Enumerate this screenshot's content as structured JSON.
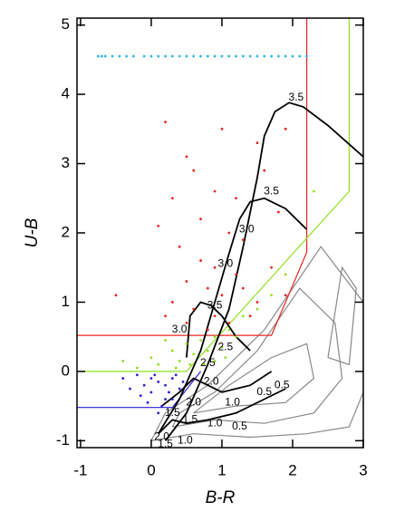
{
  "chart_data": {
    "type": "scatter",
    "x_label": "B-R",
    "y_label": "U-B",
    "xlim": [
      -1.05,
      3
    ],
    "ylim": [
      -1.1,
      5.1
    ],
    "xticks": [
      -1,
      0,
      1,
      2,
      3
    ],
    "yticks": [
      -1,
      0,
      1,
      2,
      3,
      4,
      5
    ],
    "series": [
      {
        "color": "#e8261f",
        "x": [
          0.2,
          0.3,
          0.5,
          0.6,
          0.9,
          1.1,
          1.3,
          1.5,
          1.6,
          1.8,
          1.0,
          0.4,
          0.7,
          0.9,
          1.2,
          0.5,
          0.8,
          1.0,
          1.3,
          1.5,
          0.3,
          0.6,
          0.9,
          1.1,
          1.4,
          0.2,
          0.5,
          0.8,
          -0.5,
          1.7,
          1.9,
          0.7,
          1.2,
          1.9,
          0.1
        ],
        "y": [
          3.6,
          2.5,
          3.1,
          2.9,
          2.6,
          2.0,
          1.9,
          3.3,
          2.9,
          2.3,
          3.5,
          1.8,
          1.6,
          1.5,
          1.4,
          1.3,
          1.2,
          1.1,
          1.2,
          1.0,
          1.0,
          0.9,
          0.8,
          0.7,
          0.8,
          0.8,
          0.7,
          0.6,
          1.1,
          1.5,
          1.1,
          2.2,
          2.5,
          3.5,
          2.1
        ]
      },
      {
        "color": "#8ee01f",
        "x": [
          0,
          0.1,
          0.3,
          0.4,
          0.5,
          0.6,
          0.7,
          0.8,
          0.9,
          1.0,
          1.1,
          1.2,
          1.3,
          1.5,
          1.7,
          -0.2,
          -0.4,
          0.2,
          0.55,
          0.9,
          2.3,
          1.9,
          0.35,
          0.75,
          1.05
        ],
        "y": [
          0.2,
          0.1,
          0.3,
          0.15,
          0.4,
          0.25,
          0.45,
          0.3,
          0.5,
          0.35,
          0.6,
          0.5,
          0.8,
          0.9,
          1.1,
          0.05,
          0.15,
          0.45,
          0.1,
          0.15,
          2.6,
          1.4,
          0.05,
          0.1,
          0.2
        ]
      },
      {
        "color": "#2a1fd6",
        "x": [
          -0.1,
          0,
          0.1,
          0.2,
          0.3,
          0.4,
          0.15,
          -0.05,
          0.05,
          0.25,
          -0.3,
          -0.4,
          0.35,
          0.1,
          0.2,
          -0.15,
          0.45,
          0,
          0.3,
          -0.2
        ],
        "y": [
          -0.2,
          -0.3,
          -0.15,
          -0.4,
          -0.1,
          -0.25,
          -0.5,
          -0.45,
          -0.05,
          -0.3,
          -0.25,
          -0.1,
          -0.05,
          -0.6,
          -0.2,
          -0.35,
          -0.15,
          -0.1,
          -0.4,
          -0.05
        ]
      },
      {
        "color": "#29b6e8",
        "x": [
          -0.75,
          -0.7,
          -0.65,
          -0.55,
          -0.45,
          -0.35,
          -0.25,
          -0.1,
          0,
          0.1,
          0.2,
          0.3,
          0.4,
          0.5,
          0.6,
          0.7,
          0.8,
          0.9,
          1.0,
          1.1,
          1.2,
          1.3,
          1.4,
          1.5,
          1.6,
          1.7,
          1.8,
          1.9,
          2.0,
          2.1,
          2.2
        ],
        "y": [
          4.55,
          4.55,
          4.55,
          4.55,
          4.55,
          4.55,
          4.55,
          4.55,
          4.55,
          4.55,
          4.55,
          4.55,
          4.55,
          4.55,
          4.55,
          4.55,
          4.55,
          4.55,
          4.55,
          4.55,
          4.55,
          4.55,
          4.55,
          4.55,
          4.55,
          4.55,
          4.55,
          4.55,
          4.55,
          4.55,
          4.55
        ]
      }
    ],
    "lines": [
      {
        "color": "#888888",
        "x": [
          0.0,
          0.6,
          1.4,
          2.2,
          2.8,
          3.0,
          3.0,
          2.4,
          1.6,
          0.8,
          0.2,
          0.0
        ],
        "y": [
          -1.0,
          -0.9,
          -0.95,
          -0.9,
          -0.8,
          -0.3,
          1.0,
          1.8,
          0.6,
          -0.2,
          -0.6,
          -1.0
        ]
      },
      {
        "color": "#888888",
        "x": [
          0.3,
          0.9,
          1.6,
          2.3,
          2.7,
          2.6,
          2.1,
          1.5,
          0.9,
          0.4,
          0.3
        ],
        "y": [
          -0.8,
          -0.7,
          -0.75,
          -0.6,
          -0.1,
          0.7,
          1.2,
          0.3,
          -0.3,
          -0.6,
          -0.8
        ]
      },
      {
        "color": "#888888",
        "x": [
          0.6,
          1.2,
          1.9,
          2.3,
          2.2,
          1.7,
          1.1,
          0.6
        ],
        "y": [
          -0.6,
          -0.5,
          -0.45,
          -0.1,
          0.4,
          0.2,
          -0.2,
          -0.6
        ]
      },
      {
        "color": "#888888",
        "x": [
          2.5,
          2.8,
          2.9,
          2.7,
          2.5
        ],
        "y": [
          0.2,
          0.1,
          1.2,
          1.5,
          0.2
        ]
      },
      {
        "color": "#e8261f",
        "x": [
          -1.05,
          1.7,
          2.2,
          2.2
        ],
        "y": [
          0.52,
          0.52,
          1.72,
          5.1
        ]
      },
      {
        "color": "#8ee01f",
        "x": [
          -1.05,
          0.5,
          2.8,
          2.8
        ],
        "y": [
          0,
          0,
          2.6,
          5.1
        ]
      },
      {
        "color": "#2a1fd6",
        "x": [
          -1.05,
          0.3,
          0.7
        ],
        "y": [
          -0.52,
          -0.52,
          0
        ]
      },
      {
        "color": "#000000",
        "x": [
          0.2,
          0.5,
          0.8,
          1.1,
          1.3,
          1.5,
          1.6,
          1.75,
          1.95,
          2.15,
          2.5,
          3.0
        ],
        "y": [
          -1.0,
          -0.6,
          0.1,
          0.9,
          1.8,
          2.8,
          3.4,
          3.75,
          3.88,
          3.82,
          3.55,
          3.1
        ]
      },
      {
        "color": "#000000",
        "x": [
          0.1,
          0.4,
          0.7,
          0.9,
          1.1,
          1.25,
          1.4,
          1.6,
          1.9,
          2.2
        ],
        "y": [
          -0.9,
          -0.4,
          0.3,
          1.0,
          1.7,
          2.2,
          2.45,
          2.5,
          2.35,
          2.05
        ]
      },
      {
        "color": "#000000",
        "x": [
          0.5,
          0.55,
          0.7,
          0.85,
          1.0,
          1.2,
          1.4
        ],
        "y": [
          0.2,
          0.8,
          1.0,
          0.95,
          0.8,
          0.5,
          0.3
        ]
      },
      {
        "color": "#000000",
        "x": [
          0.1,
          0.3,
          0.5,
          0.8,
          1.2,
          1.6,
          1.9
        ],
        "y": [
          -0.9,
          -0.7,
          -0.75,
          -0.7,
          -0.6,
          -0.4,
          -0.25
        ]
      },
      {
        "color": "#000000",
        "x": [
          0.15,
          0.4,
          0.6,
          1.0,
          1.4,
          1.7
        ],
        "y": [
          -0.5,
          -0.3,
          -0.1,
          -0.3,
          -0.2,
          0.0
        ]
      }
    ],
    "annotations": [
      {
        "text": "3.5",
        "x": 2.05,
        "y": 3.95
      },
      {
        "text": "3.5",
        "x": 1.7,
        "y": 2.6
      },
      {
        "text": "3.0",
        "x": 1.35,
        "y": 2.05
      },
      {
        "text": "3.0",
        "x": 1.05,
        "y": 1.55
      },
      {
        "text": "3.5",
        "x": 0.9,
        "y": 0.95
      },
      {
        "text": "3.0",
        "x": 0.4,
        "y": 0.6
      },
      {
        "text": "2.5",
        "x": 1.05,
        "y": 0.35
      },
      {
        "text": "2.5",
        "x": 0.8,
        "y": 0.12
      },
      {
        "text": "2.0",
        "x": 0.85,
        "y": -0.15
      },
      {
        "text": "2.0",
        "x": 0.6,
        "y": -0.45
      },
      {
        "text": "1.5",
        "x": 0.55,
        "y": -0.7
      },
      {
        "text": "1.5",
        "x": 0.3,
        "y": -0.6
      },
      {
        "text": "1.0",
        "x": 0.9,
        "y": -0.75
      },
      {
        "text": "1.0",
        "x": 1.15,
        "y": -0.45
      },
      {
        "text": "0.5",
        "x": 1.25,
        "y": -0.8
      },
      {
        "text": "0.5",
        "x": 1.6,
        "y": -0.3
      },
      {
        "text": "0.5",
        "x": 1.85,
        "y": -0.2
      },
      {
        "text": "2.0",
        "x": 0.15,
        "y": -0.95
      },
      {
        "text": "1.5",
        "x": 0.2,
        "y": -1.05
      },
      {
        "text": "1.0",
        "x": 0.48,
        "y": -1.0
      }
    ]
  }
}
